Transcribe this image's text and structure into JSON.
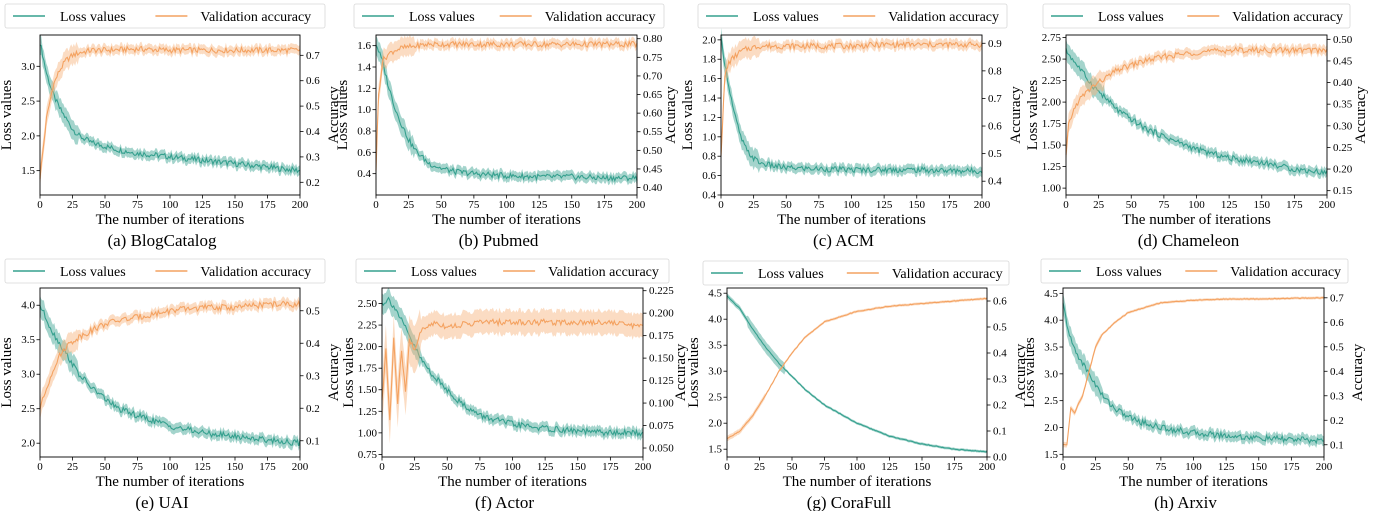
{
  "figure": {
    "colors": {
      "loss": "#35a08e",
      "loss_band": "#35a08e",
      "accuracy": "#f4a261",
      "accuracy_band": "#f6b27a"
    }
  },
  "chart_data": [
    {
      "type": "line",
      "caption": "(a) BlogCatalog",
      "xlabel": "The number of iterations",
      "ylabel_left": "Loss values",
      "ylabel_right": "Accuracy",
      "legend": [
        "Loss values",
        "Validation accuracy"
      ],
      "xlim": [
        0,
        200
      ],
      "ylim_left": [
        1.15,
        3.45
      ],
      "ylim_right": [
        0.15,
        0.78
      ],
      "xticks": [
        0,
        25,
        50,
        75,
        100,
        125,
        150,
        175,
        200
      ],
      "yticks_left": [
        1.5,
        2.0,
        2.5,
        3.0
      ],
      "yticks_right": [
        0.2,
        0.3,
        0.4,
        0.5,
        0.6,
        0.7
      ],
      "series": [
        {
          "name": "Loss values",
          "axis": "left",
          "x": [
            0,
            5,
            10,
            15,
            20,
            25,
            30,
            40,
            50,
            60,
            75,
            100,
            125,
            150,
            175,
            200
          ],
          "y": [
            3.35,
            2.9,
            2.6,
            2.4,
            2.25,
            2.1,
            2.0,
            1.9,
            1.85,
            1.8,
            1.75,
            1.7,
            1.65,
            1.6,
            1.55,
            1.5
          ]
        },
        {
          "name": "Validation accuracy",
          "axis": "right",
          "x": [
            0,
            5,
            10,
            15,
            20,
            25,
            30,
            40,
            50,
            75,
            100,
            125,
            150,
            175,
            200
          ],
          "y": [
            0.22,
            0.45,
            0.58,
            0.64,
            0.68,
            0.7,
            0.71,
            0.72,
            0.72,
            0.725,
            0.72,
            0.72,
            0.72,
            0.72,
            0.72
          ]
        }
      ]
    },
    {
      "type": "line",
      "caption": "(b) Pubmed",
      "xlabel": "The number of iterations",
      "ylabel_left": "Loss values",
      "ylabel_right": "Accuracy",
      "legend": [
        "Loss values",
        "Validation accuracy"
      ],
      "xlim": [
        0,
        200
      ],
      "ylim_left": [
        0.2,
        1.7
      ],
      "ylim_right": [
        0.38,
        0.81
      ],
      "xticks": [
        0,
        25,
        50,
        75,
        100,
        125,
        150,
        175,
        200
      ],
      "yticks_left": [
        0.4,
        0.6,
        0.8,
        1.0,
        1.2,
        1.4,
        1.6
      ],
      "yticks_right": [
        0.4,
        0.45,
        0.5,
        0.55,
        0.6,
        0.65,
        0.7,
        0.75,
        0.8
      ],
      "series": [
        {
          "name": "Loss values",
          "axis": "left",
          "x": [
            0,
            5,
            10,
            15,
            20,
            25,
            30,
            40,
            50,
            60,
            75,
            100,
            125,
            150,
            175,
            200
          ],
          "y": [
            1.62,
            1.45,
            1.2,
            1.0,
            0.85,
            0.72,
            0.62,
            0.5,
            0.45,
            0.42,
            0.4,
            0.38,
            0.37,
            0.37,
            0.36,
            0.36
          ]
        },
        {
          "name": "Validation accuracy",
          "axis": "right",
          "x": [
            0,
            2,
            5,
            10,
            15,
            20,
            30,
            40,
            50,
            75,
            100,
            125,
            150,
            175,
            200
          ],
          "y": [
            0.45,
            0.65,
            0.74,
            0.76,
            0.77,
            0.775,
            0.78,
            0.785,
            0.785,
            0.785,
            0.785,
            0.785,
            0.785,
            0.785,
            0.785
          ]
        }
      ]
    },
    {
      "type": "line",
      "caption": "(c) ACM",
      "xlabel": "The number of iterations",
      "ylabel_left": "Loss values",
      "ylabel_right": "Accuracy",
      "legend": [
        "Loss values",
        "Validation accuracy"
      ],
      "xlim": [
        0,
        200
      ],
      "ylim_left": [
        0.4,
        2.05
      ],
      "ylim_right": [
        0.35,
        0.93
      ],
      "xticks": [
        0,
        25,
        50,
        75,
        100,
        125,
        150,
        175,
        200
      ],
      "yticks_left": [
        0.4,
        0.6,
        0.8,
        1.0,
        1.2,
        1.4,
        1.6,
        1.8,
        2.0
      ],
      "yticks_right": [
        0.4,
        0.5,
        0.6,
        0.7,
        0.8,
        0.9
      ],
      "series": [
        {
          "name": "Loss values",
          "axis": "left",
          "x": [
            0,
            5,
            10,
            15,
            20,
            25,
            30,
            40,
            50,
            75,
            100,
            125,
            150,
            175,
            200
          ],
          "y": [
            2.0,
            1.6,
            1.25,
            1.0,
            0.85,
            0.78,
            0.73,
            0.7,
            0.68,
            0.67,
            0.66,
            0.66,
            0.66,
            0.65,
            0.65
          ]
        },
        {
          "name": "Validation accuracy",
          "axis": "right",
          "x": [
            0,
            3,
            6,
            10,
            15,
            20,
            25,
            30,
            50,
            75,
            100,
            125,
            150,
            175,
            200
          ],
          "y": [
            0.5,
            0.78,
            0.83,
            0.85,
            0.87,
            0.88,
            0.885,
            0.89,
            0.89,
            0.89,
            0.89,
            0.895,
            0.895,
            0.895,
            0.895
          ]
        }
      ]
    },
    {
      "type": "line",
      "caption": "(d) Chameleon",
      "xlabel": "The number of iterations",
      "ylabel_left": "Loss values",
      "ylabel_right": "Accuracy",
      "legend": [
        "Loss values",
        "Validation accuracy"
      ],
      "xlim": [
        0,
        200
      ],
      "ylim_left": [
        0.92,
        2.78
      ],
      "ylim_right": [
        0.14,
        0.51
      ],
      "xticks": [
        0,
        25,
        50,
        75,
        100,
        125,
        150,
        175,
        200
      ],
      "yticks_left": [
        1.0,
        1.25,
        1.5,
        1.75,
        2.0,
        2.25,
        2.5,
        2.75
      ],
      "yticks_right": [
        0.15,
        0.2,
        0.25,
        0.3,
        0.35,
        0.4,
        0.45,
        0.5
      ],
      "series": [
        {
          "name": "Loss values",
          "axis": "left",
          "x": [
            0,
            5,
            10,
            20,
            30,
            40,
            50,
            60,
            75,
            100,
            125,
            150,
            175,
            200
          ],
          "y": [
            2.6,
            2.5,
            2.4,
            2.2,
            2.05,
            1.9,
            1.8,
            1.7,
            1.6,
            1.45,
            1.35,
            1.3,
            1.22,
            1.18
          ]
        },
        {
          "name": "Validation accuracy",
          "axis": "right",
          "x": [
            0,
            2,
            5,
            10,
            20,
            30,
            40,
            50,
            60,
            75,
            100,
            125,
            150,
            175,
            200
          ],
          "y": [
            0.23,
            0.3,
            0.33,
            0.36,
            0.39,
            0.41,
            0.43,
            0.44,
            0.45,
            0.46,
            0.47,
            0.475,
            0.475,
            0.475,
            0.475
          ]
        }
      ]
    },
    {
      "type": "line",
      "caption": "(e) UAI",
      "xlabel": "The number of iterations",
      "ylabel_left": "Loss values",
      "ylabel_right": "Accuracy",
      "legend": [
        "Loss values",
        "Validation accuracy"
      ],
      "xlim": [
        0,
        200
      ],
      "ylim_left": [
        1.8,
        4.25
      ],
      "ylim_right": [
        0.05,
        0.57
      ],
      "xticks": [
        0,
        25,
        50,
        75,
        100,
        125,
        150,
        175,
        200
      ],
      "yticks_left": [
        2.0,
        2.5,
        3.0,
        3.5,
        4.0
      ],
      "yticks_right": [
        0.1,
        0.2,
        0.3,
        0.4,
        0.5
      ],
      "series": [
        {
          "name": "Loss values",
          "axis": "left",
          "x": [
            0,
            5,
            10,
            20,
            30,
            40,
            50,
            60,
            75,
            100,
            125,
            150,
            175,
            200
          ],
          "y": [
            4.0,
            3.8,
            3.6,
            3.3,
            3.0,
            2.8,
            2.65,
            2.5,
            2.4,
            2.25,
            2.15,
            2.1,
            2.05,
            2.0
          ]
        },
        {
          "name": "Validation accuracy",
          "axis": "right",
          "x": [
            0,
            5,
            10,
            15,
            20,
            30,
            40,
            50,
            60,
            75,
            100,
            125,
            150,
            175,
            200
          ],
          "y": [
            0.2,
            0.26,
            0.32,
            0.36,
            0.39,
            0.42,
            0.44,
            0.46,
            0.47,
            0.48,
            0.5,
            0.51,
            0.51,
            0.52,
            0.52
          ]
        }
      ]
    },
    {
      "type": "line",
      "caption": "(f) Actor",
      "xlabel": "The number of iterations",
      "ylabel_left": "Loss values",
      "ylabel_right": "Accuracy",
      "legend": [
        "Loss values",
        "Validation accuracy"
      ],
      "xlim": [
        0,
        200
      ],
      "ylim_left": [
        0.72,
        2.68
      ],
      "ylim_right": [
        0.04,
        0.228
      ],
      "xticks": [
        0,
        25,
        50,
        75,
        100,
        125,
        150,
        175,
        200
      ],
      "yticks_left": [
        0.75,
        1.0,
        1.25,
        1.5,
        1.75,
        2.0,
        2.25,
        2.5
      ],
      "yticks_right": [
        0.05,
        0.075,
        0.1,
        0.125,
        0.15,
        0.175,
        0.2,
        0.225
      ],
      "series": [
        {
          "name": "Loss values",
          "axis": "left",
          "x": [
            0,
            5,
            10,
            15,
            20,
            25,
            30,
            40,
            50,
            60,
            75,
            100,
            125,
            150,
            175,
            200
          ],
          "y": [
            2.5,
            2.55,
            2.45,
            2.3,
            2.15,
            2.0,
            1.85,
            1.65,
            1.5,
            1.35,
            1.2,
            1.1,
            1.05,
            1.02,
            1.0,
            1.0
          ]
        },
        {
          "name": "Validation accuracy",
          "axis": "right",
          "x": [
            0,
            3,
            6,
            9,
            12,
            15,
            18,
            21,
            25,
            30,
            40,
            50,
            75,
            100,
            125,
            150,
            175,
            200
          ],
          "y": [
            0.1,
            0.16,
            0.08,
            0.17,
            0.1,
            0.16,
            0.11,
            0.17,
            0.16,
            0.18,
            0.19,
            0.185,
            0.19,
            0.19,
            0.19,
            0.19,
            0.19,
            0.185
          ]
        }
      ]
    },
    {
      "type": "line",
      "caption": "(g) CoraFull",
      "xlabel": "The number of iterations",
      "ylabel_left": "Loss values",
      "ylabel_right": "Accuracy",
      "legend": [
        "Loss values",
        "Validation accuracy"
      ],
      "xlim": [
        0,
        200
      ],
      "ylim_left": [
        1.35,
        4.6
      ],
      "ylim_right": [
        0.0,
        0.65
      ],
      "xticks": [
        0,
        25,
        50,
        75,
        100,
        125,
        150,
        175,
        200
      ],
      "yticks_left": [
        1.5,
        2.0,
        2.5,
        3.0,
        3.5,
        4.0,
        4.5
      ],
      "yticks_right": [
        0.0,
        0.1,
        0.2,
        0.3,
        0.4,
        0.5,
        0.6
      ],
      "series": [
        {
          "name": "Loss values",
          "axis": "left",
          "x": [
            0,
            10,
            20,
            30,
            40,
            50,
            60,
            75,
            100,
            125,
            150,
            175,
            200
          ],
          "y": [
            4.45,
            4.2,
            3.8,
            3.45,
            3.15,
            2.9,
            2.65,
            2.35,
            2.0,
            1.75,
            1.6,
            1.5,
            1.45
          ]
        },
        {
          "name": "Validation accuracy",
          "axis": "right",
          "x": [
            0,
            10,
            20,
            30,
            40,
            50,
            60,
            75,
            100,
            125,
            150,
            175,
            200
          ],
          "y": [
            0.07,
            0.1,
            0.16,
            0.24,
            0.33,
            0.4,
            0.46,
            0.52,
            0.56,
            0.58,
            0.59,
            0.6,
            0.61
          ]
        }
      ]
    },
    {
      "type": "line",
      "caption": "(h) Arxiv",
      "xlabel": "The number of iterations",
      "ylabel_left": "Loss values",
      "ylabel_right": "Accuracy",
      "legend": [
        "Loss values",
        "Validation accuracy"
      ],
      "xlim": [
        0,
        200
      ],
      "ylim_left": [
        1.45,
        4.6
      ],
      "ylim_right": [
        0.05,
        0.74
      ],
      "xticks": [
        0,
        25,
        50,
        75,
        100,
        125,
        150,
        175,
        200
      ],
      "yticks_left": [
        1.5,
        2.0,
        2.5,
        3.0,
        3.5,
        4.0,
        4.5
      ],
      "yticks_right": [
        0.1,
        0.2,
        0.3,
        0.4,
        0.5,
        0.6,
        0.7
      ],
      "series": [
        {
          "name": "Loss values",
          "axis": "left",
          "x": [
            0,
            5,
            10,
            20,
            30,
            40,
            50,
            60,
            75,
            100,
            125,
            150,
            175,
            200
          ],
          "y": [
            4.3,
            3.7,
            3.4,
            3.0,
            2.6,
            2.35,
            2.2,
            2.1,
            2.0,
            1.9,
            1.85,
            1.8,
            1.78,
            1.75
          ]
        },
        {
          "name": "Validation accuracy",
          "axis": "right",
          "x": [
            0,
            3,
            6,
            9,
            12,
            15,
            20,
            25,
            30,
            40,
            50,
            75,
            100,
            125,
            150,
            175,
            200
          ],
          "y": [
            0.1,
            0.1,
            0.25,
            0.23,
            0.27,
            0.3,
            0.4,
            0.5,
            0.55,
            0.6,
            0.64,
            0.68,
            0.69,
            0.695,
            0.695,
            0.698,
            0.7
          ]
        }
      ]
    }
  ]
}
